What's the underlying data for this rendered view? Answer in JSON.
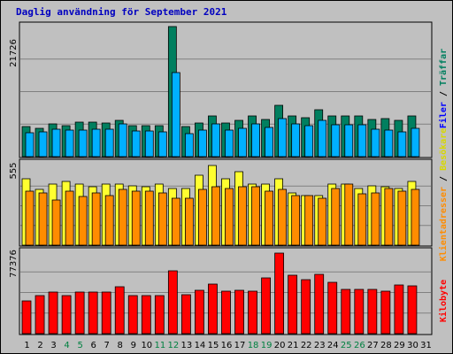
{
  "title": "Daglig användning för September 2021",
  "colors": {
    "background": "#c0c0c0",
    "grid": "#808080",
    "hits": "#007f5f",
    "files": "#00b0ff",
    "visits": "#ffff30",
    "sites": "#ff8c00",
    "kbytes": "#ff0000",
    "title": "#0000c0",
    "weekend_day": "#008040",
    "weekday": "#000000"
  },
  "labels": {
    "hits": "Träffar",
    "files": "Filer",
    "visits": "Besökare",
    "sites": "Klientadresser",
    "kbytes": "Kilobyte",
    "sep": " / "
  },
  "chart_data": [
    {
      "type": "bar",
      "panel": "top",
      "x": [
        1,
        2,
        3,
        4,
        5,
        6,
        7,
        8,
        9,
        10,
        11,
        12,
        13,
        14,
        15,
        16,
        17,
        18,
        19,
        20,
        21,
        22,
        23,
        24,
        25,
        26,
        27,
        28,
        29,
        30,
        31
      ],
      "y_tick_label": "21726",
      "ylim": [
        0,
        21726
      ],
      "series": [
        {
          "name": "Träffar",
          "values": [
            5000,
            4800,
            5400,
            5200,
            5800,
            5800,
            5600,
            6000,
            5200,
            5100,
            5200,
            21726,
            5000,
            5600,
            6800,
            5600,
            6000,
            6800,
            6200,
            8500,
            6800,
            6500,
            7800,
            6800,
            6800,
            6800,
            6200,
            6400,
            6000,
            6800,
            null
          ]
        },
        {
          "name": "Filer",
          "values": [
            4000,
            4100,
            4600,
            4400,
            4500,
            4600,
            4600,
            5400,
            4300,
            4300,
            4200,
            14000,
            3900,
            4500,
            5400,
            4400,
            4800,
            5400,
            4900,
            6300,
            5500,
            5200,
            6100,
            5300,
            5300,
            5300,
            4600,
            4500,
            4200,
            4800,
            null
          ]
        }
      ]
    },
    {
      "type": "bar",
      "panel": "middle",
      "x": [
        1,
        2,
        3,
        4,
        5,
        6,
        7,
        8,
        9,
        10,
        11,
        12,
        13,
        14,
        15,
        16,
        17,
        18,
        19,
        20,
        21,
        22,
        23,
        24,
        25,
        26,
        27,
        28,
        29,
        30,
        31
      ],
      "y_tick_label": "555",
      "ylim": [
        0,
        555
      ],
      "series": [
        {
          "name": "Besökare",
          "values": [
            470,
            390,
            430,
            450,
            430,
            410,
            430,
            430,
            420,
            410,
            430,
            400,
            400,
            490,
            560,
            470,
            520,
            430,
            430,
            470,
            370,
            350,
            350,
            430,
            430,
            400,
            420,
            410,
            400,
            450,
            null
          ]
        },
        {
          "name": "Klientadresser",
          "values": [
            380,
            370,
            320,
            380,
            340,
            370,
            350,
            390,
            380,
            380,
            370,
            330,
            330,
            390,
            410,
            400,
            410,
            410,
            380,
            390,
            350,
            350,
            330,
            400,
            430,
            360,
            370,
            400,
            380,
            390,
            null
          ]
        }
      ]
    },
    {
      "type": "bar",
      "panel": "bottom",
      "x": [
        1,
        2,
        3,
        4,
        5,
        6,
        7,
        8,
        9,
        10,
        11,
        12,
        13,
        14,
        15,
        16,
        17,
        18,
        19,
        20,
        21,
        22,
        23,
        24,
        25,
        26,
        27,
        28,
        29,
        30,
        31
      ],
      "y_tick_label": "77376",
      "ylim": [
        0,
        77376
      ],
      "series": [
        {
          "name": "Kilobyte",
          "values": [
            31000,
            36000,
            39000,
            36000,
            39000,
            39000,
            39000,
            44000,
            36000,
            36000,
            36000,
            59000,
            37000,
            41000,
            47000,
            40000,
            41000,
            40000,
            52000,
            76000,
            55000,
            51000,
            56000,
            48000,
            42000,
            42000,
            42000,
            40000,
            46000,
            45000,
            null
          ]
        }
      ]
    }
  ]
}
